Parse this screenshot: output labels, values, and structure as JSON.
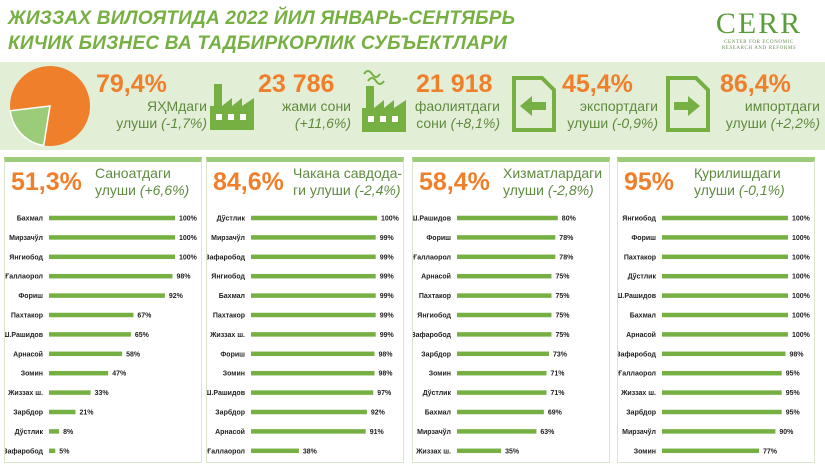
{
  "header": {
    "title_line1": "ЖИЗЗАХ ВИЛОЯТИДА 2022 ЙИЛ ЯНВАРЬ-СЕНТЯБРЬ",
    "title_line2": "КИЧИК БИЗНЕС ВА ТАДБИРКОРЛИК СУБЪЕКТЛАРИ"
  },
  "logo": {
    "word": "CERR",
    "sub1": "CENTER FOR ECONOMIC",
    "sub2": "RESEARCH AND REFORMS"
  },
  "colors": {
    "accent_green": "#76b043",
    "accent_orange": "#f07f2b",
    "band_bg": "#e3eed6"
  },
  "kpis": [
    {
      "value": "79,4%",
      "label1": "ЯҲМдаги",
      "label2": "улуши",
      "change": "(-1,7%)",
      "icon": "pie-chart-icon",
      "pie_share": 79.4
    },
    {
      "value": "23 786",
      "label1": "жами сони",
      "label2": "",
      "change": "(+11,6%)",
      "icon": "factory-icon"
    },
    {
      "value": "21 918",
      "label1": "фаолиятдаги",
      "label2": "сони",
      "change": "(+8,1%)",
      "icon": "factory-smoke-icon"
    },
    {
      "value": "45,4%",
      "label1": "экспортдаги",
      "label2": "улуши",
      "change": "(-0,9%)",
      "icon": "export-arrow-icon"
    },
    {
      "value": "86,4%",
      "label1": "импортдаги",
      "label2": "улуши",
      "change": "(+2,2%)",
      "icon": "import-arrow-icon"
    }
  ],
  "panels": [
    {
      "big": "51,3%",
      "lbl1": "Саноатдаги",
      "lbl2": "улуши",
      "chg": "(+6,6%)"
    },
    {
      "big": "84,6%",
      "lbl1": "Чакана савдода-",
      "lbl2": "ги улуши",
      "chg": "(-2,4%)"
    },
    {
      "big": "58,4%",
      "lbl1": "Хизматлардаги",
      "lbl2": "улуши",
      "chg": "(-2,8%)"
    },
    {
      "big": "95%",
      "lbl1": "Қурилишдаги",
      "lbl2": "улуши",
      "chg": "(-0,1%)"
    }
  ],
  "chart_data": [
    {
      "type": "bar",
      "orientation": "horizontal",
      "categories": [
        "Бахмал",
        "Мирзачўл",
        "Янгиобод",
        "Ғаллаорол",
        "Фориш",
        "Пахтакор",
        "Ш.Рашидов",
        "Арнасой",
        "Зомин",
        "Жиззах ш.",
        "Зарбдор",
        "Дўстлик",
        "Зафаробод"
      ],
      "values": [
        100,
        100,
        100,
        98,
        92,
        67,
        65,
        58,
        47,
        33,
        21,
        8,
        5
      ],
      "value_labels": [
        "100%",
        "100%",
        "100%",
        "98%",
        "92%",
        "67%",
        "65%",
        "58%",
        "47%",
        "33%",
        "21%",
        "8%",
        "5%"
      ]
    },
    {
      "type": "bar",
      "orientation": "horizontal",
      "categories": [
        "Дўстлик",
        "Мирзачўл",
        "Зафаробод",
        "Янгиобод",
        "Бахмал",
        "Пахтакор",
        "Жиззах ш.",
        "Фориш",
        "Зомин",
        "Ш.Рашидов",
        "Зарбдор",
        "Арнасой",
        "Ғаллаорол"
      ],
      "values": [
        100,
        99,
        99,
        99,
        99,
        99,
        99,
        98,
        98,
        97,
        92,
        91,
        38
      ],
      "value_labels": [
        "100%",
        "99%",
        "99%",
        "99%",
        "99%",
        "99%",
        "99%",
        "98%",
        "98%",
        "97%",
        "92%",
        "91%",
        "38%"
      ]
    },
    {
      "type": "bar",
      "orientation": "horizontal",
      "categories": [
        "Ш.Рашидов",
        "Фориш",
        "Ғаллаорол",
        "Арнасой",
        "Пахтакор",
        "Янгиобод",
        "Зафаробод",
        "Зарбдор",
        "Зомин",
        "Дўстлик",
        "Бахмал",
        "Мирзачўл",
        "Жиззах ш."
      ],
      "values": [
        80,
        78,
        78,
        75,
        75,
        75,
        75,
        73,
        71,
        71,
        69,
        63,
        35
      ],
      "value_labels": [
        "80%",
        "78%",
        "78%",
        "75%",
        "75%",
        "75%",
        "75%",
        "73%",
        "71%",
        "71%",
        "69%",
        "63%",
        "35%"
      ]
    },
    {
      "type": "bar",
      "orientation": "horizontal",
      "categories": [
        "Янгиобод",
        "Фориш",
        "Пахтакор",
        "Дўстлик",
        "Ш.Рашидов",
        "Бахмал",
        "Арнасой",
        "Зафаробод",
        "Ғаллаорол",
        "Жиззах ш.",
        "Зарбдор",
        "Мирзачўл",
        "Зомин"
      ],
      "values": [
        100,
        100,
        100,
        100,
        100,
        100,
        100,
        98,
        95,
        95,
        95,
        90,
        77
      ],
      "value_labels": [
        "100%",
        "100%",
        "100%",
        "100%",
        "100%",
        "100%",
        "100%",
        "98%",
        "95%",
        "95%",
        "95%",
        "90%",
        "77%"
      ]
    }
  ]
}
